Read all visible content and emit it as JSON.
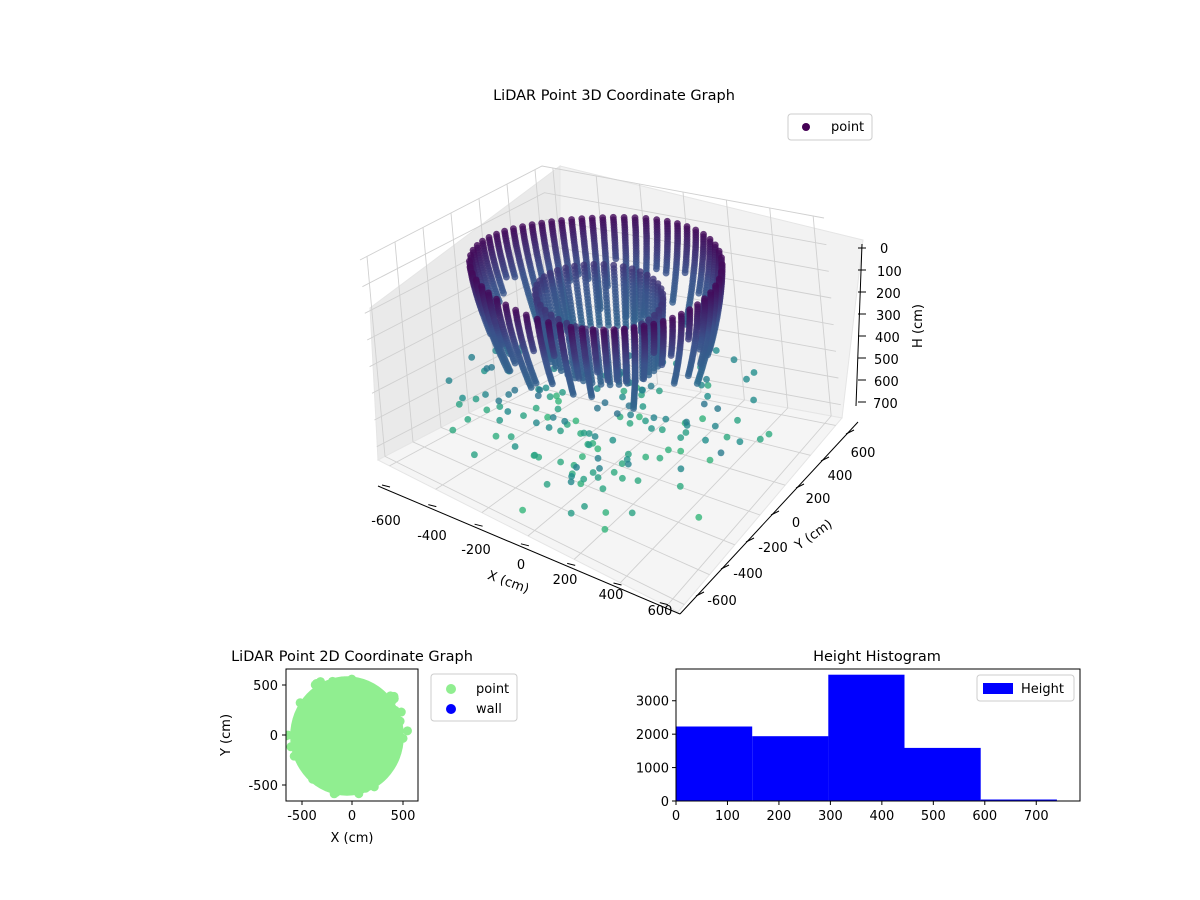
{
  "colors": {
    "point3d_low": "#440154",
    "point3d_mid": "#31688e",
    "point3d_high": "#35b779",
    "point2d": "#90ee90",
    "wall": "#0000ff",
    "hist": "#0000ff",
    "pane": "#f2f2f2",
    "grid": "#d0d0d0"
  },
  "chart_data": [
    {
      "type": "scatter3d",
      "title": "LiDAR Point 3D Coordinate Graph",
      "xlabel": "X (cm)",
      "ylabel": "Y (cm)",
      "zlabel": "H (cm)",
      "x_ticks": [
        "-600",
        "-400",
        "-200",
        "0",
        "200",
        "400",
        "600"
      ],
      "y_ticks": [
        "-600",
        "-400",
        "-200",
        "0",
        "200",
        "400",
        "600"
      ],
      "z_ticks": [
        "0",
        "100",
        "200",
        "300",
        "400",
        "500",
        "600",
        "700"
      ],
      "xlim": [
        -650,
        650
      ],
      "ylim": [
        -650,
        650
      ],
      "zlim": [
        0,
        750
      ],
      "z_inverted": true,
      "colormap": "viridis",
      "legend": [
        "point"
      ],
      "legend_position": "top-right",
      "grid": true
    },
    {
      "type": "scatter",
      "title": "LiDAR Point 2D Coordinate Graph",
      "xlabel": "X (cm)",
      "ylabel": "Y (cm)",
      "x_ticks": [
        "-500",
        "0",
        "500"
      ],
      "y_ticks": [
        "500",
        "0",
        "-500"
      ],
      "xlim": [
        -650,
        650
      ],
      "ylim": [
        -650,
        650
      ],
      "series": [
        {
          "name": "point",
          "shape": "filled disk",
          "center": [
            0,
            0
          ],
          "radius_cm": 560
        },
        {
          "name": "wall",
          "values": []
        }
      ],
      "legend_position": "outside right"
    },
    {
      "type": "bar",
      "title": "Height Histogram",
      "x_ticks": [
        "0",
        "100",
        "200",
        "300",
        "400",
        "500",
        "600",
        "700"
      ],
      "y_ticks": [
        "0",
        "1000",
        "2000",
        "3000"
      ],
      "xlim": [
        0,
        785
      ],
      "ylim": [
        0,
        3950
      ],
      "bins": [
        {
          "start": 0,
          "end": 148,
          "count": 2230
        },
        {
          "start": 148,
          "end": 296,
          "count": 1940
        },
        {
          "start": 296,
          "end": 444,
          "count": 3780
        },
        {
          "start": 444,
          "end": 592,
          "count": 1590
        },
        {
          "start": 592,
          "end": 740,
          "count": 45
        },
        {
          "start": 740,
          "end": 785,
          "count": 15
        }
      ],
      "series": [
        {
          "name": "Height"
        }
      ],
      "legend_position": "top-right"
    }
  ]
}
